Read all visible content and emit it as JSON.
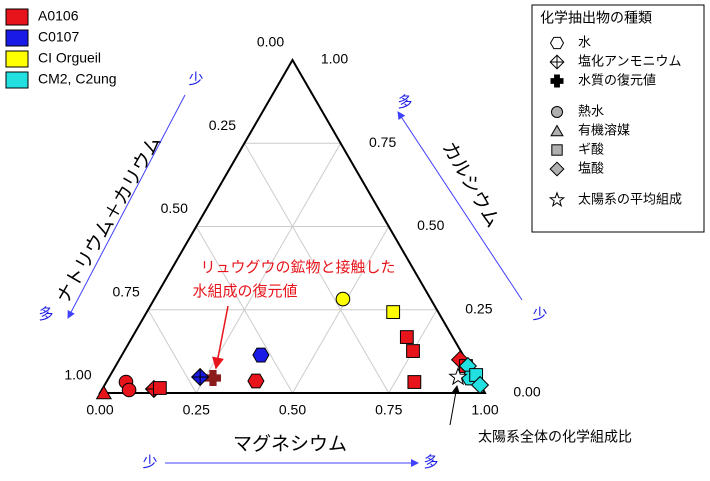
{
  "chart_data": {
    "type": "ternary",
    "bottom_axis_title": "マグネシウム",
    "right_axis_title": "カルシウム",
    "left_axis_title": "ナトリウム＋カリウム",
    "mg_ticks": [
      {
        "value": 0,
        "label": "0.00"
      },
      {
        "value": 0.25,
        "label": "0.25"
      },
      {
        "value": 0.5,
        "label": "0.50"
      },
      {
        "value": 0.75,
        "label": "0.75"
      },
      {
        "value": 1,
        "label": "1.00"
      }
    ],
    "ca_ticks": [
      {
        "value": 0,
        "label": "0.00"
      },
      {
        "value": 0.25,
        "label": "0.25"
      },
      {
        "value": 0.5,
        "label": "0.50"
      },
      {
        "value": 0.75,
        "label": "0.75"
      },
      {
        "value": 1,
        "label": "1.00"
      }
    ],
    "nak_ticks": [
      {
        "value": 0,
        "label": "0.00"
      },
      {
        "value": 0.25,
        "label": "0.25"
      },
      {
        "value": 0.5,
        "label": "0.50"
      },
      {
        "value": 0.75,
        "label": "0.75"
      },
      {
        "value": 1,
        "label": "1.00"
      }
    ],
    "grid": true,
    "direction_labels": {
      "few": "少",
      "many": "多"
    },
    "series": [
      {
        "name": "A0106",
        "color": "#e8141b",
        "points": [
          {
            "marker": "triangle",
            "mg": 0.01,
            "ca": 0
          },
          {
            "marker": "circle",
            "mg": 0.051,
            "ca": 0.033
          },
          {
            "marker": "circle",
            "mg": 0.071,
            "ca": 0.009
          },
          {
            "marker": "diamond-cross",
            "mg": 0.134,
            "ca": 0.012
          },
          {
            "marker": "square",
            "mg": 0.148,
            "ca": 0.015
          },
          {
            "marker": "hexagon",
            "mg": 0.387,
            "ca": 0.036
          },
          {
            "marker": "square",
            "mg": 0.713,
            "ca": 0.168
          },
          {
            "marker": "square",
            "mg": 0.75,
            "ca": 0.126
          },
          {
            "marker": "square",
            "mg": 0.8,
            "ca": 0.033
          },
          {
            "marker": "diamond",
            "mg": 0.885,
            "ca": 0.1
          },
          {
            "marker": "square",
            "mg": 0.91,
            "ca": 0.081
          },
          {
            "marker": "plus",
            "color": "#8b1c1c",
            "mg": 0.271,
            "ca": 0.045
          }
        ]
      },
      {
        "name": "C0107",
        "color": "#1a1ae6",
        "points": [
          {
            "marker": "diamond-cross",
            "mg": 0.236,
            "ca": 0.048
          },
          {
            "marker": "hexagon",
            "mg": 0.361,
            "ca": 0.114
          }
        ]
      },
      {
        "name": "CI Orgueil",
        "color": "#ffff00",
        "points": [
          {
            "marker": "circle",
            "mg": 0.49,
            "ca": 0.282
          },
          {
            "marker": "square",
            "mg": 0.64,
            "ca": 0.243
          }
        ]
      },
      {
        "name": "CM2, C2ung",
        "color": "#22e0e0",
        "points": [
          {
            "marker": "diamond",
            "mg": 0.915,
            "ca": 0.081
          },
          {
            "marker": "hexagon",
            "mg": 0.938,
            "ca": 0.045
          },
          {
            "marker": "square",
            "mg": 0.95,
            "ca": 0.054
          },
          {
            "marker": "diamond",
            "mg": 0.975,
            "ca": 0.024
          }
        ]
      }
    ],
    "reference_points": [
      {
        "marker": "star",
        "color": "#ffffff",
        "mg": 0.906,
        "ca": 0.048
      }
    ],
    "marker_legend": {
      "title": "化学抽出物の種類",
      "items": [
        {
          "name": "水",
          "marker": "hexagon",
          "color": "#ffffff"
        },
        {
          "name": "塩化アンモニウム",
          "marker": "diamond-cross",
          "color": "#ffffff"
        },
        {
          "name": "水質の復元値",
          "marker": "plus",
          "color": "#000000"
        },
        {
          "name": "熱水",
          "marker": "circle",
          "color": "#b0b0b0"
        },
        {
          "name": "有機溶媒",
          "marker": "triangle",
          "color": "#b0b0b0"
        },
        {
          "name": "ギ酸",
          "marker": "square",
          "color": "#b0b0b0"
        },
        {
          "name": "塩酸",
          "marker": "diamond",
          "color": "#b0b0b0"
        },
        {
          "name": "太陽系の平均組成",
          "marker": "star",
          "color": "#ffffff"
        }
      ]
    },
    "annotations": [
      "リュウグウの鉱物と接触した",
      "水組成の復元値",
      "太陽系全体の化学組成比"
    ]
  }
}
